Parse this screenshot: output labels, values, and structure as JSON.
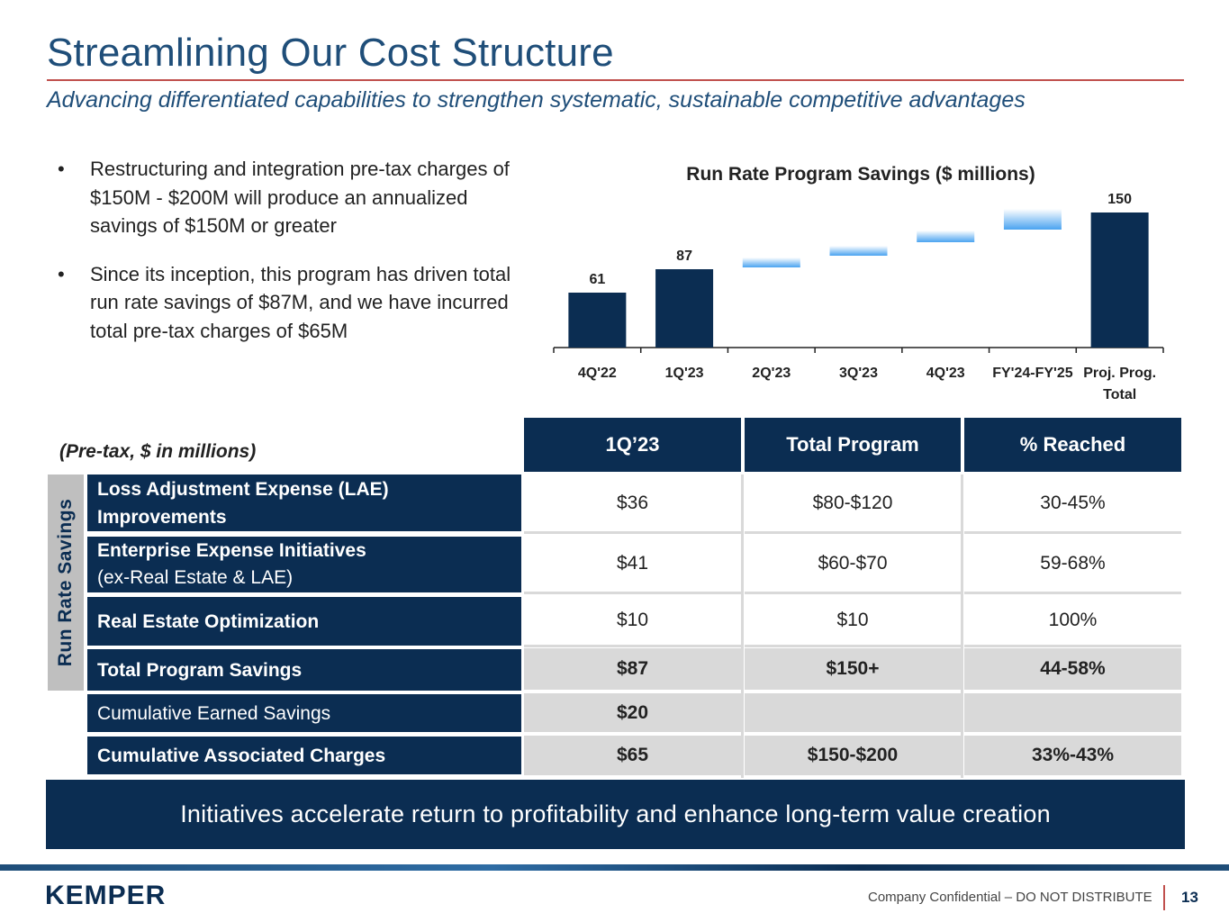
{
  "header": {
    "title": "Streamlining Our Cost Structure",
    "subtitle": "Advancing differentiated capabilities to strengthen systematic, sustainable competitive advantages"
  },
  "bullets": [
    "Restructuring and integration pre-tax charges of $150M - $200M will produce an annualized savings of $150M or greater",
    "Since its inception, this program has driven total run rate savings of $87M, and we have incurred total pre-tax charges of $65M"
  ],
  "bullet_glyph": "•",
  "chart_data": {
    "type": "bar",
    "title": "Run Rate Program Savings ($ millions)",
    "categories": [
      "4Q'22",
      "1Q'23",
      "2Q'23",
      "3Q'23",
      "4Q'23",
      "FY'24-FY'25",
      "Proj. Prog. Total"
    ],
    "values": [
      61,
      87,
      null,
      null,
      null,
      null,
      150
    ],
    "data_labels": [
      "61",
      "87",
      "",
      "",
      "",
      "",
      "150"
    ],
    "projected_increments": [
      {
        "category": "2Q'23",
        "from": 89,
        "to": 100
      },
      {
        "category": "3Q'23",
        "from": 102,
        "to": 113
      },
      {
        "category": "4Q'23",
        "from": 117,
        "to": 130
      },
      {
        "category": "FY'24-FY'25",
        "from": 131,
        "to": 154
      }
    ],
    "ylim": [
      0,
      160
    ],
    "bar_color": "#0b2d52",
    "projection_color": "#4aa3f0",
    "xlabel": "",
    "ylabel": ""
  },
  "table": {
    "units_label": "(Pre-tax, $ in millions)",
    "columns": [
      "1Q’23",
      "Total Program",
      "% Reached"
    ],
    "side_label": "Run Rate Savings",
    "rows": [
      {
        "label_bold": "Loss Adjustment Expense (LAE) Improvements",
        "label_normal": "",
        "values": [
          "$36",
          "$80-$120",
          "30-45%"
        ]
      },
      {
        "label_bold": "Enterprise Expense Initiatives",
        "label_normal": "(ex-Real Estate & LAE)",
        "values": [
          "$41",
          "$60-$70",
          "59-68%"
        ]
      },
      {
        "label_bold": "Real Estate Optimization",
        "label_normal": "",
        "values": [
          "$10",
          "$10",
          "100%"
        ]
      },
      {
        "label_bold": "Total Program Savings",
        "label_normal": "",
        "values": [
          "$87",
          "$150+",
          "44-58%"
        ]
      },
      {
        "label_bold": "",
        "label_normal": "Cumulative Earned Savings",
        "values": [
          "$20",
          "",
          ""
        ]
      },
      {
        "label_bold": "Cumulative Associated Charges",
        "label_normal": "",
        "values": [
          "$65",
          "$150-$200",
          "33%-43%"
        ]
      }
    ]
  },
  "banner": "Initiatives accelerate return to profitability and enhance long-term value creation",
  "footer": {
    "logo": "KEMPER",
    "confidential": "Company Confidential – DO NOT DISTRIBUTE",
    "page": "13"
  }
}
